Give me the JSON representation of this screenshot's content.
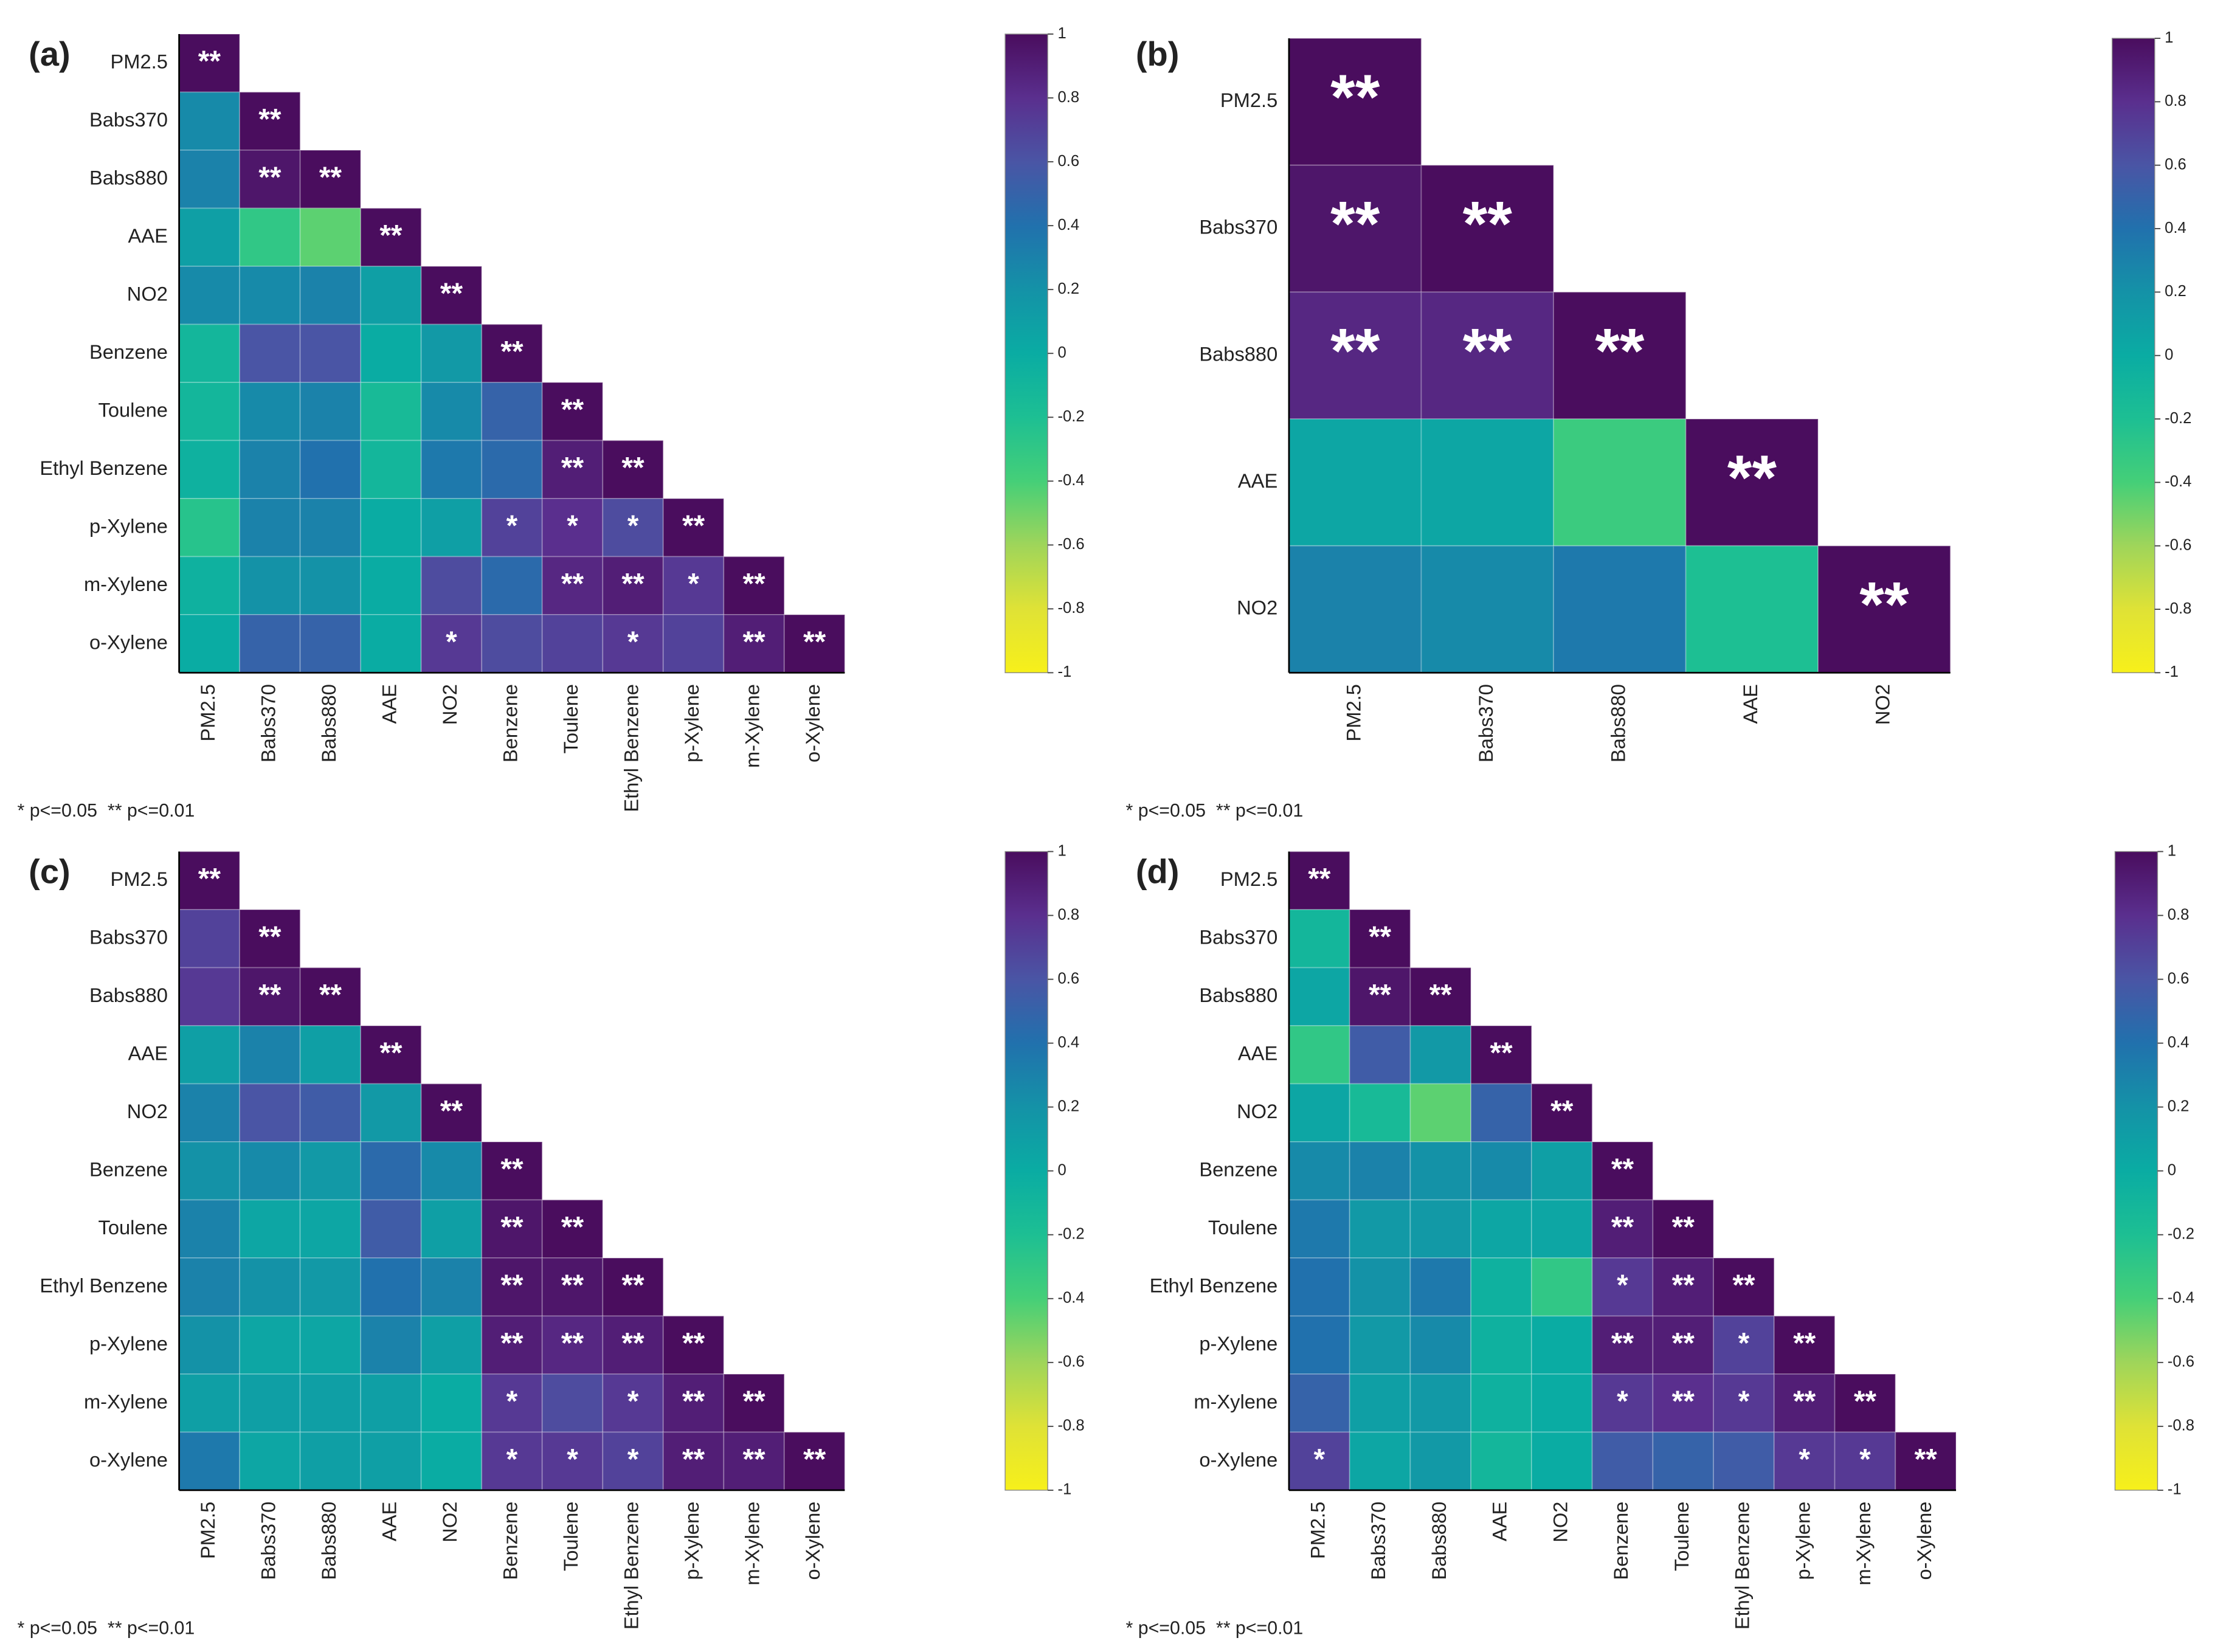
{
  "chart_data": [
    {
      "type": "heatmap",
      "panel_label": "(a)",
      "note": "* p<=0.05  ** p<=0.01",
      "categories": [
        "PM2.5",
        "Babs370",
        "Babs880",
        "AAE",
        "NO2",
        "Benzene",
        "Toulene",
        "Ethyl Benzene",
        "p-Xylene",
        "m-Xylene",
        "o-Xylene"
      ],
      "values": [
        [
          1
        ],
        [
          0.25,
          1
        ],
        [
          0.3,
          0.95,
          1
        ],
        [
          0.1,
          -0.3,
          -0.45,
          1
        ],
        [
          0.25,
          0.25,
          0.3,
          0.1,
          1
        ],
        [
          -0.1,
          0.6,
          0.6,
          0,
          0.15,
          1
        ],
        [
          -0.1,
          0.25,
          0.3,
          -0.15,
          0.25,
          0.5,
          1
        ],
        [
          -0.05,
          0.3,
          0.4,
          -0.1,
          0.35,
          0.45,
          0.9,
          1
        ],
        [
          -0.25,
          0.3,
          0.3,
          0,
          0.1,
          0.7,
          0.8,
          0.65,
          1
        ],
        [
          -0.05,
          0.2,
          0.2,
          0,
          0.65,
          0.45,
          0.85,
          0.9,
          0.75,
          1
        ],
        [
          0,
          0.5,
          0.5,
          0,
          0.75,
          0.65,
          0.7,
          0.75,
          0.7,
          0.9,
          1
        ]
      ],
      "annotations": [
        [
          "**"
        ],
        [
          null,
          "**"
        ],
        [
          null,
          "**",
          "**"
        ],
        [
          null,
          null,
          null,
          "**"
        ],
        [
          null,
          null,
          null,
          null,
          "**"
        ],
        [
          null,
          null,
          null,
          null,
          null,
          "**"
        ],
        [
          null,
          null,
          null,
          null,
          null,
          null,
          "**"
        ],
        [
          null,
          null,
          null,
          null,
          null,
          null,
          "**",
          "**"
        ],
        [
          null,
          null,
          null,
          null,
          null,
          "*",
          "*",
          "*",
          "**"
        ],
        [
          null,
          null,
          null,
          null,
          null,
          null,
          "**",
          "**",
          "*",
          "**"
        ],
        [
          null,
          null,
          null,
          null,
          "*",
          null,
          null,
          "*",
          null,
          "**",
          "**"
        ]
      ],
      "zlim": [
        -1,
        1
      ],
      "zticks": [
        1,
        0.8,
        0.6,
        0.4,
        0.2,
        0,
        -0.2,
        -0.4,
        -0.6,
        -0.8,
        -1
      ],
      "colormap": [
        "#f7f01a",
        "#dfe236",
        "#9fd55a",
        "#45cf78",
        "#1dbf93",
        "#0aaca3",
        "#1492a7",
        "#2171ad",
        "#4a55a5",
        "#5a2f8e",
        "#4a0d5e"
      ]
    },
    {
      "type": "heatmap",
      "panel_label": "(b)",
      "note": "* p<=0.05  ** p<=0.01",
      "categories": [
        "PM2.5",
        "Babs370",
        "Babs880",
        "AAE",
        "NO2"
      ],
      "values": [
        [
          1
        ],
        [
          0.95,
          1
        ],
        [
          0.85,
          0.85,
          1
        ],
        [
          0.05,
          0.05,
          -0.35,
          1
        ],
        [
          0.3,
          0.25,
          0.35,
          -0.2,
          1
        ]
      ],
      "annotations": [
        [
          "**"
        ],
        [
          "**",
          "**"
        ],
        [
          "**",
          "**",
          "**"
        ],
        [
          null,
          null,
          null,
          "**"
        ],
        [
          null,
          null,
          null,
          null,
          "**"
        ]
      ],
      "zlim": [
        -1,
        1
      ],
      "zticks": [
        1,
        0.8,
        0.6,
        0.4,
        0.2,
        0,
        -0.2,
        -0.4,
        -0.6,
        -0.8,
        -1
      ],
      "colormap": [
        "#f7f01a",
        "#dfe236",
        "#9fd55a",
        "#45cf78",
        "#1dbf93",
        "#0aaca3",
        "#1492a7",
        "#2171ad",
        "#4a55a5",
        "#5a2f8e",
        "#4a0d5e"
      ]
    },
    {
      "type": "heatmap",
      "panel_label": "(c)",
      "note": "* p<=0.05  ** p<=0.01",
      "categories": [
        "PM2.5",
        "Babs370",
        "Babs880",
        "AAE",
        "NO2",
        "Benzene",
        "Toulene",
        "Ethyl Benzene",
        "p-Xylene",
        "m-Xylene",
        "o-Xylene"
      ],
      "values": [
        [
          1
        ],
        [
          0.7,
          1
        ],
        [
          0.75,
          0.95,
          1
        ],
        [
          0.1,
          0.3,
          0.1,
          1
        ],
        [
          0.3,
          0.6,
          0.55,
          0.15,
          1
        ],
        [
          0.2,
          0.25,
          0.15,
          0.45,
          0.25,
          1
        ],
        [
          0.3,
          0.05,
          0.05,
          0.55,
          0.1,
          0.95,
          1
        ],
        [
          0.3,
          0.2,
          0.15,
          0.4,
          0.3,
          0.95,
          0.95,
          1
        ],
        [
          0.2,
          0.05,
          0.05,
          0.3,
          0.1,
          0.9,
          0.85,
          0.9,
          1
        ],
        [
          0.1,
          0.1,
          0.1,
          0.1,
          0,
          0.75,
          0.65,
          0.75,
          0.9,
          1
        ],
        [
          0.35,
          0.05,
          0.1,
          0.1,
          0,
          0.75,
          0.75,
          0.7,
          0.9,
          0.9,
          1
        ]
      ],
      "annotations": [
        [
          "**"
        ],
        [
          null,
          "**"
        ],
        [
          null,
          "**",
          "**"
        ],
        [
          null,
          null,
          null,
          "**"
        ],
        [
          null,
          null,
          null,
          null,
          "**"
        ],
        [
          null,
          null,
          null,
          null,
          null,
          "**"
        ],
        [
          null,
          null,
          null,
          null,
          null,
          "**",
          "**"
        ],
        [
          null,
          null,
          null,
          null,
          null,
          "**",
          "**",
          "**"
        ],
        [
          null,
          null,
          null,
          null,
          null,
          "**",
          "**",
          "**",
          "**"
        ],
        [
          null,
          null,
          null,
          null,
          null,
          "*",
          null,
          "*",
          "**",
          "**"
        ],
        [
          null,
          null,
          null,
          null,
          null,
          "*",
          "*",
          "*",
          "**",
          "**",
          "**"
        ]
      ],
      "zlim": [
        -1,
        1
      ],
      "zticks": [
        1,
        0.8,
        0.6,
        0.4,
        0.2,
        0,
        -0.2,
        -0.4,
        -0.6,
        -0.8,
        -1
      ],
      "colormap": [
        "#f7f01a",
        "#dfe236",
        "#9fd55a",
        "#45cf78",
        "#1dbf93",
        "#0aaca3",
        "#1492a7",
        "#2171ad",
        "#4a55a5",
        "#5a2f8e",
        "#4a0d5e"
      ]
    },
    {
      "type": "heatmap",
      "panel_label": "(d)",
      "note": "* p<=0.05  ** p<=0.01",
      "categories": [
        "PM2.5",
        "Babs370",
        "Babs880",
        "AAE",
        "NO2",
        "Benzene",
        "Toulene",
        "Ethyl Benzene",
        "p-Xylene",
        "m-Xylene",
        "o-Xylene"
      ],
      "values": [
        [
          1
        ],
        [
          -0.1,
          1
        ],
        [
          0.05,
          0.95,
          1
        ],
        [
          -0.3,
          0.55,
          0.15,
          1
        ],
        [
          0.05,
          -0.15,
          -0.45,
          0.5,
          1
        ],
        [
          0.25,
          0.3,
          0.2,
          0.25,
          0.1,
          1
        ],
        [
          0.35,
          0.15,
          0.15,
          0.05,
          0.05,
          0.9,
          1
        ],
        [
          0.4,
          0.2,
          0.35,
          -0.05,
          -0.3,
          0.75,
          0.9,
          1
        ],
        [
          0.4,
          0.15,
          0.25,
          -0.05,
          0,
          0.9,
          0.9,
          0.7,
          1
        ],
        [
          0.5,
          0.1,
          0.15,
          -0.05,
          0,
          0.75,
          0.8,
          0.75,
          0.9,
          1
        ],
        [
          0.7,
          0.05,
          0.15,
          -0.1,
          0,
          0.55,
          0.5,
          0.55,
          0.75,
          0.75,
          1
        ]
      ],
      "annotations": [
        [
          "**"
        ],
        [
          null,
          "**"
        ],
        [
          null,
          "**",
          "**"
        ],
        [
          null,
          null,
          null,
          "**"
        ],
        [
          null,
          null,
          null,
          null,
          "**"
        ],
        [
          null,
          null,
          null,
          null,
          null,
          "**"
        ],
        [
          null,
          null,
          null,
          null,
          null,
          "**",
          "**"
        ],
        [
          null,
          null,
          null,
          null,
          null,
          "*",
          "**",
          "**"
        ],
        [
          null,
          null,
          null,
          null,
          null,
          "**",
          "**",
          "*",
          "**"
        ],
        [
          null,
          null,
          null,
          null,
          null,
          "*",
          "**",
          "*",
          "**",
          "**"
        ],
        [
          "*",
          null,
          null,
          null,
          null,
          null,
          null,
          null,
          "*",
          "*",
          "**"
        ]
      ],
      "zlim": [
        -1,
        1
      ],
      "zticks": [
        1,
        0.8,
        0.6,
        0.4,
        0.2,
        0,
        -0.2,
        -0.4,
        -0.6,
        -0.8,
        -1
      ],
      "colormap": [
        "#f7f01a",
        "#dfe236",
        "#9fd55a",
        "#45cf78",
        "#1dbf93",
        "#0aaca3",
        "#1492a7",
        "#2171ad",
        "#4a55a5",
        "#5a2f8e",
        "#4a0d5e"
      ]
    }
  ]
}
